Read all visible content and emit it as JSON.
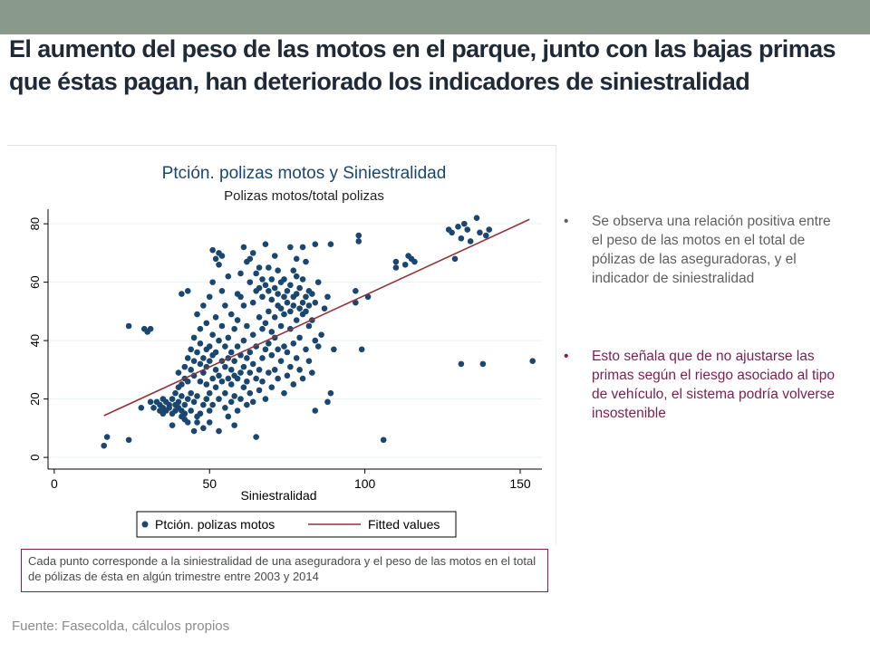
{
  "slide": {
    "title": "El aumento del peso de las motos en el parque, junto con las bajas primas que éstas pagan, han deteriorado los indicadores de siniestralidad",
    "bullets": [
      "Se observa una relación positiva entre el peso de las motos en el total de pólizas de las aseguradoras, y el indicador de siniestralidad",
      "Esto señala que de no ajustarse las primas según el riesgo asociado al tipo de vehículo, el sistema podría volverse insostenible"
    ],
    "bullet_glyph": "•",
    "note": "Cada punto corresponde a la siniestralidad de una aseguradora y el peso de las motos en el total de pólizas de ésta en algún trimestre entre 2003 y 2014",
    "source": "Fuente: Fasecolda, cálculos propios",
    "colors": {
      "topbar": "#8a9a8a",
      "title": "#1f2a36",
      "highlight": "#7b1f4f"
    }
  },
  "chart_data": {
    "type": "scatter",
    "title": "Ptción. polizas motos y Siniestralidad",
    "subtitle": "Polizas motos/total polizas",
    "xlabel": "Siniestralidad",
    "ylabel": "",
    "xlim": [
      -2,
      157
    ],
    "ylim": [
      -4,
      85
    ],
    "xticks": [
      0,
      50,
      100,
      150
    ],
    "yticks": [
      0,
      20,
      40,
      60,
      80
    ],
    "grid": true,
    "legend_position": "bottom",
    "colors": {
      "points": "#1a476f",
      "fit": "#90353b",
      "title": "#1a476f",
      "grid": "#eaf2f3"
    },
    "series": [
      {
        "name": "Ptción. polizas motos",
        "kind": "scatter",
        "points": [
          [
            16,
            4
          ],
          [
            17,
            7
          ],
          [
            24,
            6
          ],
          [
            24,
            45
          ],
          [
            28,
            17
          ],
          [
            29,
            44
          ],
          [
            30,
            43
          ],
          [
            31,
            44
          ],
          [
            31,
            19
          ],
          [
            32,
            17
          ],
          [
            33,
            19
          ],
          [
            34,
            16
          ],
          [
            34,
            18
          ],
          [
            35,
            15
          ],
          [
            35,
            17
          ],
          [
            35,
            20
          ],
          [
            36,
            16
          ],
          [
            36,
            19
          ],
          [
            37,
            17
          ],
          [
            37,
            18
          ],
          [
            38,
            15
          ],
          [
            38,
            20
          ],
          [
            38,
            11
          ],
          [
            39,
            16
          ],
          [
            39,
            18
          ],
          [
            39,
            22
          ],
          [
            40,
            17
          ],
          [
            40,
            19
          ],
          [
            40,
            24
          ],
          [
            40,
            29
          ],
          [
            41,
            14
          ],
          [
            41,
            16
          ],
          [
            41,
            21
          ],
          [
            41,
            25
          ],
          [
            41,
            56
          ],
          [
            42,
            13
          ],
          [
            42,
            15
          ],
          [
            42,
            18
          ],
          [
            42,
            27
          ],
          [
            42,
            31
          ],
          [
            43,
            12
          ],
          [
            43,
            20
          ],
          [
            43,
            26
          ],
          [
            43,
            34
          ],
          [
            43,
            57
          ],
          [
            44,
            16
          ],
          [
            44,
            22
          ],
          [
            44,
            30
          ],
          [
            44,
            37
          ],
          [
            45,
            9
          ],
          [
            45,
            19
          ],
          [
            45,
            28
          ],
          [
            45,
            33
          ],
          [
            45,
            41
          ],
          [
            46,
            12
          ],
          [
            46,
            14
          ],
          [
            46,
            21
          ],
          [
            46,
            36
          ],
          [
            46,
            49
          ],
          [
            47,
            15
          ],
          [
            47,
            26
          ],
          [
            47,
            32
          ],
          [
            47,
            39
          ],
          [
            47,
            44
          ],
          [
            48,
            10
          ],
          [
            48,
            18
          ],
          [
            48,
            29
          ],
          [
            48,
            34
          ],
          [
            48,
            52
          ],
          [
            49,
            20
          ],
          [
            49,
            25
          ],
          [
            49,
            31
          ],
          [
            49,
            37
          ],
          [
            49,
            46
          ],
          [
            50,
            12
          ],
          [
            50,
            16
          ],
          [
            50,
            22
          ],
          [
            50,
            33
          ],
          [
            50,
            38
          ],
          [
            50,
            55
          ],
          [
            51,
            18
          ],
          [
            51,
            27
          ],
          [
            51,
            35
          ],
          [
            51,
            42
          ],
          [
            51,
            60
          ],
          [
            51,
            71
          ],
          [
            52,
            24
          ],
          [
            52,
            30
          ],
          [
            52,
            36
          ],
          [
            52,
            48
          ],
          [
            52,
            68
          ],
          [
            53,
            9
          ],
          [
            53,
            20
          ],
          [
            53,
            28
          ],
          [
            53,
            40
          ],
          [
            53,
            66
          ],
          [
            53,
            70
          ],
          [
            54,
            26
          ],
          [
            54,
            33
          ],
          [
            54,
            45
          ],
          [
            54,
            57
          ],
          [
            54,
            69
          ],
          [
            55,
            17
          ],
          [
            55,
            22
          ],
          [
            55,
            31
          ],
          [
            55,
            38
          ],
          [
            55,
            52
          ],
          [
            56,
            14
          ],
          [
            56,
            27
          ],
          [
            56,
            34
          ],
          [
            56,
            41
          ],
          [
            56,
            62
          ],
          [
            57,
            19
          ],
          [
            57,
            25
          ],
          [
            57,
            30
          ],
          [
            57,
            36
          ],
          [
            57,
            49
          ],
          [
            58,
            11
          ],
          [
            58,
            21
          ],
          [
            58,
            28
          ],
          [
            58,
            33
          ],
          [
            58,
            44
          ],
          [
            59,
            16
          ],
          [
            59,
            27
          ],
          [
            59,
            38
          ],
          [
            59,
            47
          ],
          [
            59,
            56
          ],
          [
            60,
            20
          ],
          [
            60,
            29
          ],
          [
            60,
            35
          ],
          [
            60,
            55
          ],
          [
            60,
            63
          ],
          [
            61,
            24
          ],
          [
            61,
            31
          ],
          [
            61,
            40
          ],
          [
            61,
            52
          ],
          [
            61,
            72
          ],
          [
            62,
            18
          ],
          [
            62,
            26
          ],
          [
            62,
            34
          ],
          [
            62,
            45
          ],
          [
            62,
            67
          ],
          [
            63,
            22
          ],
          [
            63,
            29
          ],
          [
            63,
            36
          ],
          [
            63,
            60
          ],
          [
            63,
            68
          ],
          [
            64,
            19
          ],
          [
            64,
            32
          ],
          [
            64,
            42
          ],
          [
            64,
            53
          ],
          [
            64,
            70
          ],
          [
            65,
            7
          ],
          [
            65,
            27
          ],
          [
            65,
            38
          ],
          [
            65,
            57
          ],
          [
            65,
            63
          ],
          [
            66,
            23
          ],
          [
            66,
            30
          ],
          [
            66,
            48
          ],
          [
            66,
            58
          ],
          [
            66,
            65
          ],
          [
            67,
            26
          ],
          [
            67,
            34
          ],
          [
            67,
            44
          ],
          [
            67,
            55
          ],
          [
            67,
            61
          ],
          [
            68,
            20
          ],
          [
            68,
            37
          ],
          [
            68,
            46
          ],
          [
            68,
            59
          ],
          [
            68,
            73
          ],
          [
            69,
            29
          ],
          [
            69,
            39
          ],
          [
            69,
            50
          ],
          [
            69,
            57
          ],
          [
            69,
            65
          ],
          [
            70,
            24
          ],
          [
            70,
            35
          ],
          [
            70,
            43
          ],
          [
            70,
            54
          ],
          [
            70,
            61
          ],
          [
            71,
            30
          ],
          [
            71,
            41
          ],
          [
            71,
            48
          ],
          [
            71,
            58
          ],
          [
            71,
            69
          ],
          [
            72,
            27
          ],
          [
            72,
            37
          ],
          [
            72,
            52
          ],
          [
            72,
            56
          ],
          [
            72,
            64
          ],
          [
            73,
            33
          ],
          [
            73,
            45
          ],
          [
            73,
            51
          ],
          [
            73,
            60
          ],
          [
            74,
            22
          ],
          [
            74,
            38
          ],
          [
            74,
            49
          ],
          [
            74,
            55
          ],
          [
            74,
            61
          ],
          [
            75,
            28
          ],
          [
            75,
            36
          ],
          [
            75,
            53
          ],
          [
            75,
            57
          ],
          [
            76,
            31
          ],
          [
            76,
            44
          ],
          [
            76,
            50
          ],
          [
            76,
            59
          ],
          [
            76,
            72
          ],
          [
            77,
            25
          ],
          [
            77,
            39
          ],
          [
            77,
            52
          ],
          [
            77,
            55
          ],
          [
            77,
            64
          ],
          [
            78,
            34
          ],
          [
            78,
            47
          ],
          [
            78,
            56
          ],
          [
            78,
            62
          ],
          [
            78,
            68
          ],
          [
            79,
            30
          ],
          [
            79,
            41
          ],
          [
            79,
            51
          ],
          [
            79,
            58
          ],
          [
            80,
            27
          ],
          [
            80,
            49
          ],
          [
            80,
            53
          ],
          [
            80,
            61
          ],
          [
            80,
            72
          ],
          [
            81,
            37
          ],
          [
            81,
            50
          ],
          [
            81,
            55
          ],
          [
            81,
            67
          ],
          [
            82,
            33
          ],
          [
            82,
            45
          ],
          [
            82,
            52
          ],
          [
            82,
            57
          ],
          [
            83,
            29
          ],
          [
            83,
            47
          ],
          [
            83,
            56
          ],
          [
            84,
            16
          ],
          [
            84,
            40
          ],
          [
            84,
            53
          ],
          [
            84,
            73
          ],
          [
            85,
            38
          ],
          [
            85,
            60
          ],
          [
            86,
            42
          ],
          [
            87,
            51
          ],
          [
            88,
            19
          ],
          [
            88,
            55
          ],
          [
            89,
            22
          ],
          [
            89,
            73
          ],
          [
            90,
            37
          ],
          [
            97,
            53
          ],
          [
            97,
            57
          ],
          [
            98,
            76
          ],
          [
            98,
            74
          ],
          [
            99,
            37
          ],
          [
            101,
            55
          ],
          [
            106,
            6
          ],
          [
            110,
            67
          ],
          [
            110,
            65
          ],
          [
            113,
            66
          ],
          [
            114,
            69
          ],
          [
            115,
            68
          ],
          [
            116,
            67
          ],
          [
            127,
            78
          ],
          [
            128,
            77
          ],
          [
            129,
            68
          ],
          [
            130,
            79
          ],
          [
            131,
            75
          ],
          [
            131,
            32
          ],
          [
            132,
            80
          ],
          [
            133,
            78
          ],
          [
            134,
            74
          ],
          [
            136,
            82
          ],
          [
            137,
            77
          ],
          [
            138,
            32
          ],
          [
            139,
            76
          ],
          [
            140,
            78
          ],
          [
            154,
            33
          ]
        ]
      },
      {
        "name": "Fitted values",
        "kind": "line",
        "points": [
          [
            16,
            14.3
          ],
          [
            153,
            81.5
          ]
        ]
      }
    ]
  }
}
